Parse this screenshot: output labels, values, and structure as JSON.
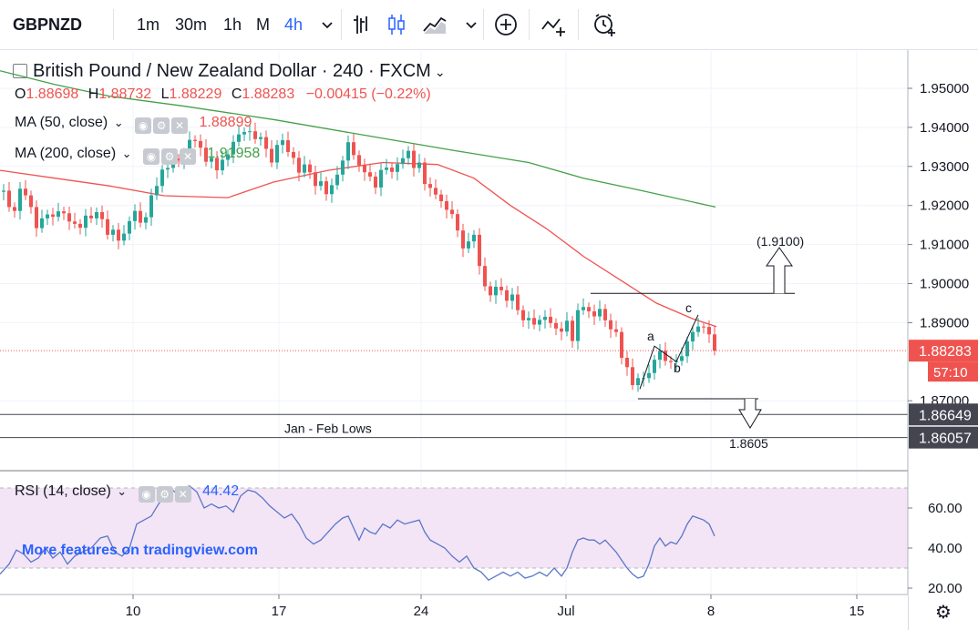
{
  "toolbar": {
    "symbol": "GBPNZD",
    "intervals": [
      "1m",
      "30m",
      "1h",
      "M",
      "4h"
    ],
    "active_interval": "4h",
    "icons": [
      "chevron-down-icon",
      "bar-style-icon",
      "candle-style-icon",
      "area-style-icon",
      "chevron-down-icon",
      "add-compare-icon",
      "indicators-icon",
      "alert-icon"
    ]
  },
  "legend": {
    "title": "British Pound / New Zealand Dollar · 240 · FXCM",
    "o_label": "O",
    "o": "1.88698",
    "h_label": "H",
    "h": "1.88732",
    "l_label": "L",
    "l": "1.88229",
    "c_label": "C",
    "c": "1.88283",
    "change": "−0.00415 (−0.22%)"
  },
  "indicators": {
    "ma50_label": "MA (50, close)",
    "ma50_value": "1.88899",
    "ma200_label": "MA (200, close)",
    "ma200_value": "1.91958",
    "rsi_label": "RSI (14, close)",
    "rsi_value": "44.42"
  },
  "watermark": "More features on tradingview.com",
  "colors": {
    "up": "#26a69a",
    "down": "#ef5350",
    "ma50": "#ef5350",
    "ma200": "#43a047",
    "rsi_line": "#5b76c8",
    "rsi_band": "#f3e5f5",
    "price_line": "#ef5350"
  },
  "chart_data": {
    "type": "candlestick",
    "symbol": "GBPNZD",
    "timeframe": "240",
    "x_ticks": [
      "10",
      "17",
      "24",
      "Jul",
      "8",
      "15"
    ],
    "y_ticks": [
      "1.95000",
      "1.94000",
      "1.93000",
      "1.92000",
      "1.91000",
      "1.90000",
      "1.89000",
      "1.87000"
    ],
    "ylim": [
      1.855,
      1.963
    ],
    "last_price": "1.88283",
    "countdown": "57:10",
    "close_path": [
      [
        0,
        1.9235
      ],
      [
        6,
        1.9238
      ],
      [
        12,
        1.9196
      ],
      [
        18,
        1.9186
      ],
      [
        24,
        1.9243
      ],
      [
        30,
        1.9226
      ],
      [
        36,
        1.9196
      ],
      [
        42,
        1.9142
      ],
      [
        48,
        1.9167
      ],
      [
        54,
        1.9177
      ],
      [
        60,
        1.9171
      ],
      [
        66,
        1.9185
      ],
      [
        72,
        1.918
      ],
      [
        78,
        1.9159
      ],
      [
        84,
        1.9153
      ],
      [
        90,
        1.9143
      ],
      [
        96,
        1.9174
      ],
      [
        102,
        1.9167
      ],
      [
        108,
        1.9183
      ],
      [
        114,
        1.9165
      ],
      [
        120,
        1.9125
      ],
      [
        126,
        1.9138
      ],
      [
        132,
        1.911
      ],
      [
        138,
        1.9128
      ],
      [
        144,
        1.916
      ],
      [
        150,
        1.9186
      ],
      [
        156,
        1.9156
      ],
      [
        162,
        1.917
      ],
      [
        168,
        1.9226
      ],
      [
        174,
        1.925
      ],
      [
        180,
        1.9292
      ],
      [
        186,
        1.9296
      ],
      [
        192,
        1.932
      ],
      [
        198,
        1.9315
      ],
      [
        204,
        1.933
      ],
      [
        210,
        1.9368
      ],
      [
        216,
        1.9365
      ],
      [
        222,
        1.9348
      ],
      [
        228,
        1.9312
      ],
      [
        234,
        1.9322
      ],
      [
        240,
        1.929
      ],
      [
        246,
        1.9317
      ],
      [
        252,
        1.9331
      ],
      [
        258,
        1.9363
      ],
      [
        264,
        1.9382
      ],
      [
        270,
        1.9388
      ],
      [
        276,
        1.939
      ],
      [
        282,
        1.937
      ],
      [
        288,
        1.9375
      ],
      [
        294,
        1.9345
      ],
      [
        300,
        1.931
      ],
      [
        306,
        1.9355
      ],
      [
        312,
        1.9367
      ],
      [
        318,
        1.9337
      ],
      [
        324,
        1.9322
      ],
      [
        330,
        1.9284
      ],
      [
        336,
        1.9305
      ],
      [
        342,
        1.9285
      ],
      [
        348,
        1.925
      ],
      [
        354,
        1.9262
      ],
      [
        360,
        1.9229
      ],
      [
        366,
        1.9252
      ],
      [
        372,
        1.9279
      ],
      [
        378,
        1.9315
      ],
      [
        384,
        1.9362
      ],
      [
        390,
        1.9329
      ],
      [
        396,
        1.9303
      ],
      [
        402,
        1.9285
      ],
      [
        408,
        1.9274
      ],
      [
        414,
        1.9246
      ],
      [
        420,
        1.9291
      ],
      [
        426,
        1.9297
      ],
      [
        432,
        1.9286
      ],
      [
        438,
        1.9306
      ],
      [
        444,
        1.9321
      ],
      [
        450,
        1.934
      ],
      [
        456,
        1.9296
      ],
      [
        462,
        1.931
      ],
      [
        468,
        1.9255
      ],
      [
        474,
        1.9245
      ],
      [
        480,
        1.9228
      ],
      [
        486,
        1.9211
      ],
      [
        492,
        1.9189
      ],
      [
        498,
        1.9178
      ],
      [
        504,
        1.9136
      ],
      [
        510,
        1.909
      ],
      [
        516,
        1.9108
      ],
      [
        522,
        1.9125
      ],
      [
        528,
        1.9045
      ],
      [
        534,
        1.8993
      ],
      [
        540,
        1.897
      ],
      [
        546,
        1.8992
      ],
      [
        552,
        1.8983
      ],
      [
        558,
        1.8956
      ],
      [
        564,
        1.8972
      ],
      [
        570,
        1.8932
      ],
      [
        576,
        1.8906
      ],
      [
        582,
        1.8912
      ],
      [
        588,
        1.8895
      ],
      [
        594,
        1.8907
      ],
      [
        600,
        1.8915
      ],
      [
        606,
        1.8899
      ],
      [
        612,
        1.8885
      ],
      [
        618,
        1.8877
      ],
      [
        624,
        1.8905
      ],
      [
        630,
        1.8853
      ],
      [
        636,
        1.8932
      ],
      [
        642,
        1.894
      ],
      [
        648,
        1.8929
      ],
      [
        654,
        1.8916
      ],
      [
        660,
        1.8935
      ],
      [
        666,
        1.8906
      ],
      [
        672,
        1.8883
      ],
      [
        678,
        1.8876
      ],
      [
        684,
        1.881
      ],
      [
        690,
        1.8786
      ],
      [
        696,
        1.874
      ],
      [
        702,
        1.8758
      ],
      [
        708,
        1.8758
      ],
      [
        714,
        1.8771
      ],
      [
        720,
        1.8805
      ],
      [
        726,
        1.8828
      ],
      [
        732,
        1.8802
      ],
      [
        738,
        1.8799
      ],
      [
        744,
        1.8802
      ],
      [
        750,
        1.8814
      ],
      [
        756,
        1.8852
      ],
      [
        762,
        1.8876
      ],
      [
        768,
        1.889
      ],
      [
        774,
        1.8889
      ],
      [
        780,
        1.887
      ],
      [
        786,
        1.8828
      ]
    ],
    "ma50": [
      [
        0,
        1.929
      ],
      [
        60,
        1.927
      ],
      [
        120,
        1.925
      ],
      [
        180,
        1.9225
      ],
      [
        250,
        1.922
      ],
      [
        300,
        1.926
      ],
      [
        360,
        1.929
      ],
      [
        420,
        1.931
      ],
      [
        480,
        1.9305
      ],
      [
        520,
        1.927
      ],
      [
        560,
        1.92
      ],
      [
        600,
        1.914
      ],
      [
        640,
        1.907
      ],
      [
        680,
        1.901
      ],
      [
        720,
        1.895
      ],
      [
        760,
        1.891
      ],
      [
        786,
        1.889
      ]
    ],
    "ma200": [
      [
        0,
        1.9545
      ],
      [
        60,
        1.951
      ],
      [
        120,
        1.948
      ],
      [
        200,
        1.9455
      ],
      [
        300,
        1.942
      ],
      [
        400,
        1.938
      ],
      [
        500,
        1.934
      ],
      [
        580,
        1.931
      ],
      [
        640,
        1.927
      ],
      [
        700,
        1.924
      ],
      [
        785,
        1.9196
      ]
    ],
    "rsi": {
      "ylim": [
        18,
        72
      ],
      "y_ticks": [
        "60.00",
        "40.00",
        "20.00"
      ],
      "upper_band": 70,
      "lower_band": 30,
      "values": [
        [
          0,
          27
        ],
        [
          10,
          32
        ],
        [
          18,
          39
        ],
        [
          26,
          37
        ],
        [
          34,
          33
        ],
        [
          42,
          35
        ],
        [
          50,
          40
        ],
        [
          58,
          35
        ],
        [
          66,
          38
        ],
        [
          74,
          32
        ],
        [
          82,
          36
        ],
        [
          90,
          38
        ],
        [
          100,
          40
        ],
        [
          110,
          45
        ],
        [
          118,
          46
        ],
        [
          126,
          38
        ],
        [
          134,
          36
        ],
        [
          142,
          40
        ],
        [
          150,
          52
        ],
        [
          158,
          54
        ],
        [
          166,
          56
        ],
        [
          174,
          62
        ],
        [
          180,
          66
        ],
        [
          186,
          70
        ],
        [
          192,
          68
        ],
        [
          200,
          70
        ],
        [
          208,
          71
        ],
        [
          216,
          68
        ],
        [
          224,
          60
        ],
        [
          232,
          62
        ],
        [
          240,
          60
        ],
        [
          248,
          61
        ],
        [
          256,
          58
        ],
        [
          264,
          66
        ],
        [
          272,
          69
        ],
        [
          280,
          68
        ],
        [
          288,
          65
        ],
        [
          296,
          61
        ],
        [
          304,
          58
        ],
        [
          312,
          55
        ],
        [
          320,
          57
        ],
        [
          328,
          52
        ],
        [
          336,
          45
        ],
        [
          344,
          42
        ],
        [
          352,
          44
        ],
        [
          360,
          48
        ],
        [
          368,
          52
        ],
        [
          376,
          55
        ],
        [
          382,
          56
        ],
        [
          388,
          50
        ],
        [
          394,
          44
        ],
        [
          400,
          50
        ],
        [
          406,
          48
        ],
        [
          412,
          47
        ],
        [
          420,
          52
        ],
        [
          428,
          50
        ],
        [
          436,
          54
        ],
        [
          444,
          52
        ],
        [
          452,
          53
        ],
        [
          460,
          54
        ],
        [
          466,
          48
        ],
        [
          472,
          44
        ],
        [
          480,
          42
        ],
        [
          488,
          40
        ],
        [
          496,
          36
        ],
        [
          504,
          33
        ],
        [
          512,
          36
        ],
        [
          520,
          30
        ],
        [
          528,
          28
        ],
        [
          536,
          24
        ],
        [
          544,
          26
        ],
        [
          552,
          28
        ],
        [
          560,
          26
        ],
        [
          568,
          28
        ],
        [
          576,
          25
        ],
        [
          584,
          26
        ],
        [
          592,
          28
        ],
        [
          600,
          26
        ],
        [
          608,
          30
        ],
        [
          616,
          26
        ],
        [
          622,
          30
        ],
        [
          628,
          38
        ],
        [
          634,
          44
        ],
        [
          640,
          45
        ],
        [
          646,
          44
        ],
        [
          652,
          44
        ],
        [
          658,
          42
        ],
        [
          664,
          44
        ],
        [
          670,
          41
        ],
        [
          676,
          38
        ],
        [
          682,
          34
        ],
        [
          688,
          30
        ],
        [
          694,
          27
        ],
        [
          700,
          25
        ],
        [
          706,
          26
        ],
        [
          712,
          32
        ],
        [
          718,
          41
        ],
        [
          724,
          45
        ],
        [
          730,
          41
        ],
        [
          736,
          43
        ],
        [
          742,
          42
        ],
        [
          748,
          46
        ],
        [
          754,
          52
        ],
        [
          760,
          56
        ],
        [
          766,
          55
        ],
        [
          772,
          54
        ],
        [
          778,
          52
        ],
        [
          784,
          46
        ]
      ]
    },
    "annotations": {
      "target_label": "(1.9100)",
      "resistance": 1.8975,
      "resistance_x": [
        648,
        872
      ],
      "support": 1.8705,
      "support_x": [
        700,
        832
      ],
      "jan_feb_upper": 1.86649,
      "jan_feb_lower": 1.86057,
      "jan_feb_label": "Jan - Feb Lows",
      "downside_label": "1.8605",
      "wave_a": "a",
      "wave_b": "b",
      "wave_c": "c",
      "axis_marker_1": "1.86649",
      "axis_marker_2": "1.86057"
    }
  }
}
